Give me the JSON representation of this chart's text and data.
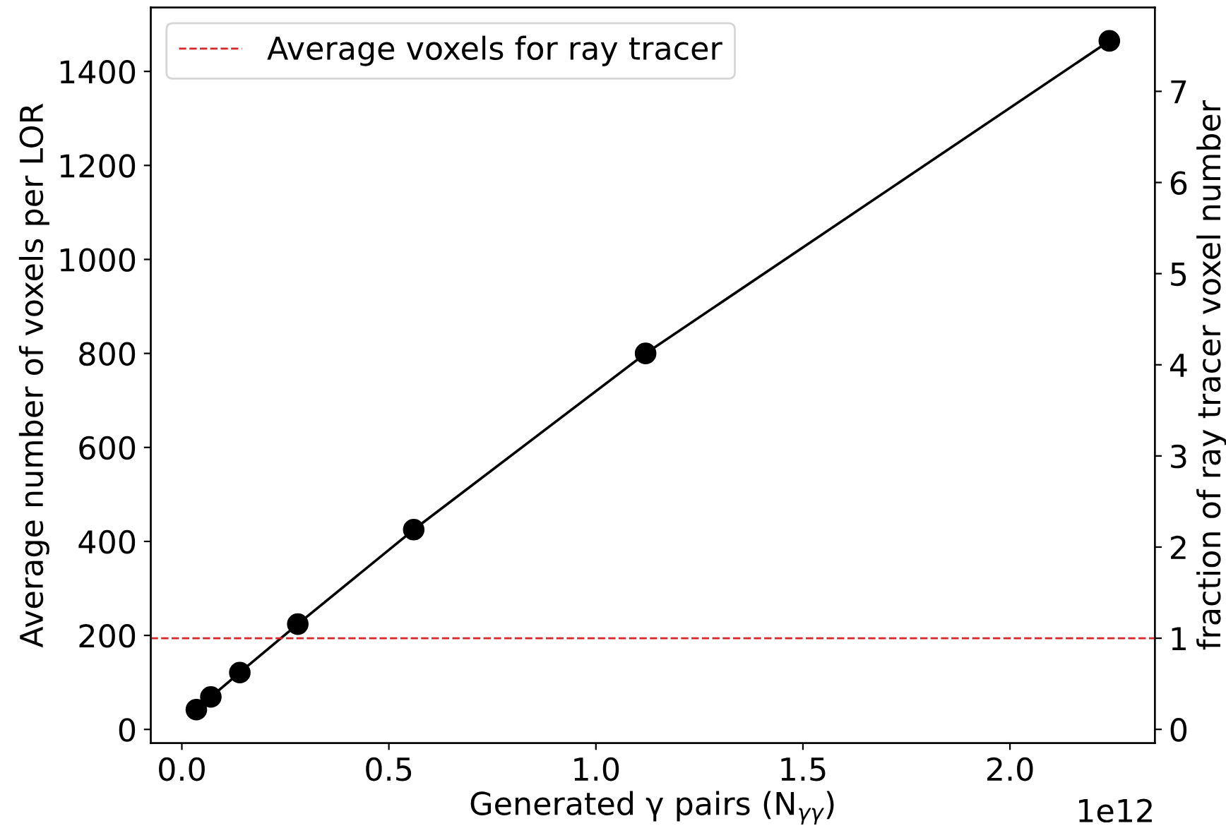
{
  "chart_data": {
    "type": "line",
    "xlabel": "Generated γ pairs (N$_{γγ}$)",
    "ylabel": "Average number of voxels per LOR",
    "y2label": "fraction of ray tracer voxel number",
    "x": [
      0.035,
      0.07,
      0.14,
      0.28,
      0.56,
      1.12,
      2.24
    ],
    "series": [
      {
        "color": "#000000",
        "values": [
          42,
          69,
          121,
          224,
          425,
          800,
          1465
        ]
      }
    ],
    "marker": "circle",
    "line_style": "solid",
    "xlim": [
      -0.075,
      2.35
    ],
    "xticks": [
      {
        "value": 0,
        "label": "0.0"
      },
      0.5,
      {
        "value": 1,
        "label": "1.0"
      },
      1.5,
      {
        "value": 2,
        "label": "2.0"
      }
    ],
    "ylim": [
      -29,
      1536
    ],
    "yticks": [
      0,
      200,
      400,
      600,
      800,
      1000,
      1200,
      1400
    ],
    "y2lim": [
      -0.15,
      7.92
    ],
    "y2ticks": [
      0,
      1,
      2,
      3,
      4,
      5,
      6,
      7
    ],
    "ref_lines": [
      {
        "axis": "y2",
        "value": 1,
        "label": "Average voxels for ray tracer",
        "color": "#d62728",
        "line_style": "dashed"
      }
    ],
    "annotations": [
      "1e12"
    ],
    "legend": "top left",
    "grid": false
  }
}
